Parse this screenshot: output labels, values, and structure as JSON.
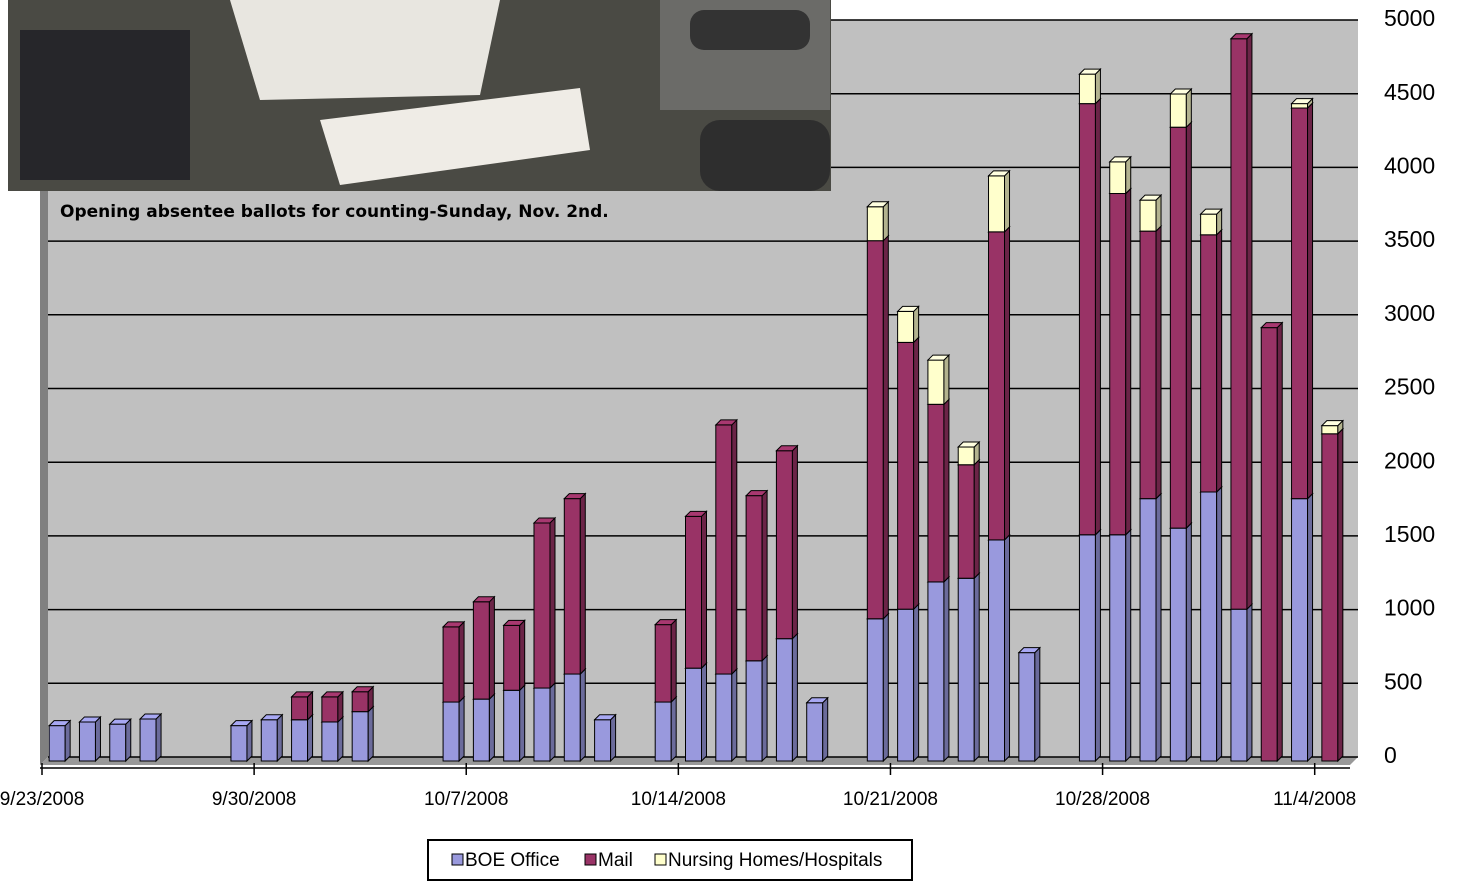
{
  "chart_data": {
    "type": "stacked-bar",
    "annotations": [
      "Opening absentee ballots for counting-Sunday, Nov. 2nd."
    ],
    "x": [
      "9/23/2008",
      "9/24/2008",
      "9/25/2008",
      "9/26/2008",
      "9/29/2008",
      "9/30/2008",
      "10/1/2008",
      "10/2/2008",
      "10/3/2008",
      "10/6/2008",
      "10/7/2008",
      "10/8/2008",
      "10/9/2008",
      "10/10/2008",
      "10/11/2008",
      "10/13/2008",
      "10/14/2008",
      "10/15/2008",
      "10/16/2008",
      "10/17/2008",
      "10/18/2008",
      "10/20/2008",
      "10/21/2008",
      "10/22/2008",
      "10/23/2008",
      "10/24/2008",
      "10/25/2008",
      "10/27/2008",
      "10/28/2008",
      "10/29/2008",
      "10/30/2008",
      "10/31/2008",
      "11/1/2008",
      "11/2/2008",
      "11/3/2008",
      "11/4/2008"
    ],
    "series": [
      {
        "name": "BOE Office",
        "color": "#9999dd",
        "values": [
          240,
          265,
          250,
          285,
          240,
          280,
          280,
          265,
          335,
          400,
          420,
          480,
          495,
          590,
          280,
          400,
          630,
          590,
          680,
          830,
          395,
          965,
          1030,
          1215,
          1240,
          1500,
          735,
          1535,
          1535,
          1780,
          1580,
          1825,
          1030,
          null,
          1780,
          null
        ]
      },
      {
        "name": "Mail",
        "color": "#993366",
        "values": [
          null,
          null,
          null,
          null,
          null,
          null,
          155,
          170,
          135,
          510,
          660,
          440,
          1120,
          1190,
          null,
          525,
          1030,
          1690,
          1120,
          1275,
          null,
          2565,
          1810,
          1205,
          770,
          2090,
          null,
          2925,
          2315,
          1815,
          2720,
          1745,
          3870,
          2940,
          2650,
          2220
        ]
      },
      {
        "name": "Nursing Homes/Hospitals",
        "color": "#ffffcc",
        "values": [
          null,
          null,
          null,
          null,
          null,
          null,
          null,
          null,
          null,
          null,
          null,
          null,
          null,
          null,
          null,
          null,
          null,
          null,
          null,
          null,
          null,
          230,
          210,
          300,
          120,
          380,
          null,
          200,
          215,
          210,
          225,
          140,
          null,
          null,
          30,
          55
        ]
      }
    ],
    "ylim": [
      0,
      5000
    ],
    "yticks": [
      0,
      500,
      1000,
      1500,
      2000,
      2500,
      3000,
      3500,
      4000,
      4500,
      5000
    ],
    "xticks": [
      "9/23/2008",
      "9/30/2008",
      "10/7/2008",
      "10/14/2008",
      "10/21/2008",
      "10/28/2008",
      "11/4/2008"
    ],
    "grid": true,
    "legend": "bottom"
  }
}
